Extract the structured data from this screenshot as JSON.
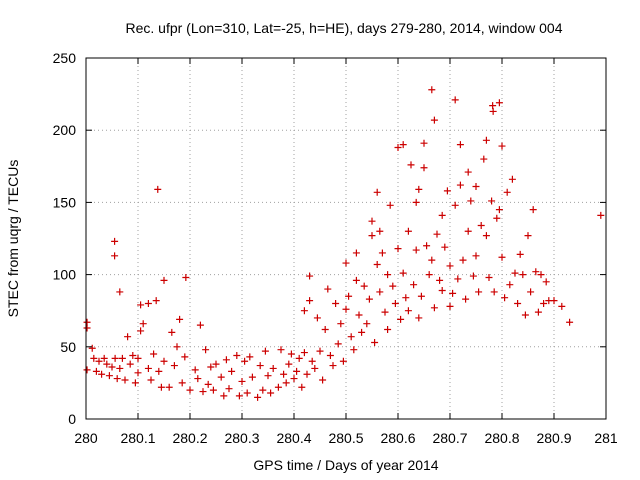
{
  "chart_data": {
    "type": "scatter",
    "title": "Rec. ufpr (Lon=310, Lat=-25, h=HE), days 279-280, 2014, window 004",
    "xlabel": "GPS time / Days of year 2014",
    "ylabel": "STEC from uqrg / TECUs",
    "xlim": [
      280,
      281
    ],
    "ylim": [
      0,
      250
    ],
    "xticks": [
      "280",
      "280.1",
      "280.2",
      "280.3",
      "280.4",
      "280.5",
      "280.6",
      "280.7",
      "280.8",
      "280.9",
      "281"
    ],
    "yticks": [
      "0",
      "50",
      "100",
      "150",
      "200",
      "250"
    ],
    "grid": true,
    "marker": "+",
    "color": "#cc0000",
    "series": [
      {
        "name": "STEC",
        "points": [
          [
            280.002,
            67
          ],
          [
            280.002,
            63
          ],
          [
            280.002,
            34
          ],
          [
            280.012,
            49
          ],
          [
            280.015,
            42
          ],
          [
            280.02,
            33
          ],
          [
            280.025,
            40
          ],
          [
            280.03,
            31
          ],
          [
            280.035,
            42
          ],
          [
            280.04,
            38
          ],
          [
            280.045,
            30
          ],
          [
            280.05,
            36
          ],
          [
            280.055,
            123
          ],
          [
            280.055,
            113
          ],
          [
            280.056,
            42
          ],
          [
            280.06,
            28
          ],
          [
            280.065,
            88
          ],
          [
            280.065,
            35
          ],
          [
            280.07,
            42
          ],
          [
            280.075,
            27
          ],
          [
            280.08,
            57
          ],
          [
            280.085,
            38
          ],
          [
            280.09,
            44
          ],
          [
            280.095,
            25
          ],
          [
            280.1,
            42
          ],
          [
            280.1,
            32
          ],
          [
            280.105,
            61
          ],
          [
            280.105,
            79
          ],
          [
            280.11,
            66
          ],
          [
            280.12,
            80
          ],
          [
            280.12,
            35
          ],
          [
            280.125,
            27
          ],
          [
            280.13,
            45
          ],
          [
            280.135,
            82
          ],
          [
            280.138,
            159
          ],
          [
            280.14,
            33
          ],
          [
            280.145,
            22
          ],
          [
            280.15,
            96
          ],
          [
            280.15,
            40
          ],
          [
            280.16,
            22
          ],
          [
            280.165,
            60
          ],
          [
            280.17,
            37
          ],
          [
            280.175,
            50
          ],
          [
            280.18,
            69
          ],
          [
            280.185,
            25
          ],
          [
            280.19,
            43
          ],
          [
            280.192,
            98
          ],
          [
            280.2,
            20
          ],
          [
            280.21,
            34
          ],
          [
            280.215,
            28
          ],
          [
            280.22,
            65
          ],
          [
            280.225,
            19
          ],
          [
            280.23,
            48
          ],
          [
            280.235,
            24
          ],
          [
            280.24,
            36
          ],
          [
            280.245,
            20
          ],
          [
            280.25,
            38
          ],
          [
            280.26,
            29
          ],
          [
            280.265,
            16
          ],
          [
            280.27,
            41
          ],
          [
            280.275,
            21
          ],
          [
            280.28,
            33
          ],
          [
            280.29,
            44
          ],
          [
            280.295,
            16
          ],
          [
            280.3,
            26
          ],
          [
            280.305,
            40
          ],
          [
            280.31,
            18
          ],
          [
            280.315,
            43
          ],
          [
            280.32,
            29
          ],
          [
            280.33,
            15
          ],
          [
            280.335,
            37
          ],
          [
            280.34,
            20
          ],
          [
            280.345,
            47
          ],
          [
            280.35,
            30
          ],
          [
            280.355,
            18
          ],
          [
            280.36,
            35
          ],
          [
            280.37,
            22
          ],
          [
            280.375,
            48
          ],
          [
            280.38,
            31
          ],
          [
            280.385,
            25
          ],
          [
            280.39,
            38
          ],
          [
            280.395,
            45
          ],
          [
            280.4,
            28
          ],
          [
            280.405,
            33
          ],
          [
            280.41,
            42
          ],
          [
            280.415,
            22
          ],
          [
            280.42,
            75
          ],
          [
            280.42,
            46
          ],
          [
            280.425,
            31
          ],
          [
            280.43,
            99
          ],
          [
            280.43,
            82
          ],
          [
            280.435,
            40
          ],
          [
            280.44,
            35
          ],
          [
            280.445,
            70
          ],
          [
            280.45,
            47
          ],
          [
            280.455,
            27
          ],
          [
            280.46,
            62
          ],
          [
            280.465,
            90
          ],
          [
            280.47,
            44
          ],
          [
            280.475,
            37
          ],
          [
            280.48,
            80
          ],
          [
            280.485,
            52
          ],
          [
            280.49,
            66
          ],
          [
            280.495,
            40
          ],
          [
            280.5,
            108
          ],
          [
            280.5,
            76
          ],
          [
            280.505,
            85
          ],
          [
            280.51,
            57
          ],
          [
            280.515,
            48
          ],
          [
            280.52,
            115
          ],
          [
            280.52,
            96
          ],
          [
            280.525,
            72
          ],
          [
            280.53,
            60
          ],
          [
            280.535,
            92
          ],
          [
            280.54,
            66
          ],
          [
            280.545,
            83
          ],
          [
            280.55,
            137
          ],
          [
            280.55,
            127
          ],
          [
            280.555,
            53
          ],
          [
            280.56,
            157
          ],
          [
            280.56,
            107
          ],
          [
            280.565,
            130
          ],
          [
            280.565,
            88
          ],
          [
            280.57,
            115
          ],
          [
            280.575,
            74
          ],
          [
            280.58,
            100
          ],
          [
            280.58,
            62
          ],
          [
            280.585,
            148
          ],
          [
            280.59,
            92
          ],
          [
            280.595,
            80
          ],
          [
            280.6,
            188
          ],
          [
            280.6,
            118
          ],
          [
            280.605,
            69
          ],
          [
            280.61,
            101
          ],
          [
            280.61,
            190
          ],
          [
            280.615,
            84
          ],
          [
            280.62,
            130
          ],
          [
            280.62,
            75
          ],
          [
            280.625,
            176
          ],
          [
            280.63,
            93
          ],
          [
            280.635,
            117
          ],
          [
            280.635,
            150
          ],
          [
            280.64,
            159
          ],
          [
            280.64,
            70
          ],
          [
            280.645,
            85
          ],
          [
            280.65,
            191
          ],
          [
            280.65,
            174
          ],
          [
            280.655,
            120
          ],
          [
            280.66,
            100
          ],
          [
            280.665,
            110
          ],
          [
            280.665,
            228
          ],
          [
            280.67,
            207
          ],
          [
            280.67,
            77
          ],
          [
            280.675,
            128
          ],
          [
            280.68,
            96
          ],
          [
            280.685,
            141
          ],
          [
            280.685,
            89
          ],
          [
            280.69,
            119
          ],
          [
            280.695,
            158
          ],
          [
            280.7,
            78
          ],
          [
            280.7,
            106
          ],
          [
            280.705,
            87
          ],
          [
            280.71,
            221
          ],
          [
            280.71,
            148
          ],
          [
            280.715,
            97
          ],
          [
            280.72,
            190
          ],
          [
            280.72,
            162
          ],
          [
            280.725,
            110
          ],
          [
            280.73,
            83
          ],
          [
            280.735,
            171
          ],
          [
            280.735,
            130
          ],
          [
            280.74,
            151
          ],
          [
            280.745,
            99
          ],
          [
            280.75,
            161
          ],
          [
            280.75,
            113
          ],
          [
            280.755,
            88
          ],
          [
            280.76,
            134
          ],
          [
            280.765,
            180
          ],
          [
            280.77,
            193
          ],
          [
            280.77,
            127
          ],
          [
            280.775,
            98
          ],
          [
            280.78,
            151
          ],
          [
            280.782,
            217
          ],
          [
            280.783,
            213
          ],
          [
            280.785,
            88
          ],
          [
            280.79,
            139
          ],
          [
            280.795,
            219
          ],
          [
            280.795,
            145
          ],
          [
            280.8,
            189
          ],
          [
            280.8,
            112
          ],
          [
            280.805,
            84
          ],
          [
            280.81,
            157
          ],
          [
            280.815,
            93
          ],
          [
            280.82,
            166
          ],
          [
            280.825,
            101
          ],
          [
            280.83,
            80
          ],
          [
            280.835,
            114
          ],
          [
            280.84,
            100
          ],
          [
            280.845,
            72
          ],
          [
            280.85,
            127
          ],
          [
            280.855,
            88
          ],
          [
            280.86,
            145
          ],
          [
            280.865,
            102
          ],
          [
            280.87,
            74
          ],
          [
            280.875,
            100
          ],
          [
            280.88,
            80
          ],
          [
            280.885,
            95
          ],
          [
            280.89,
            82
          ],
          [
            280.9,
            82
          ],
          [
            280.915,
            78
          ],
          [
            280.93,
            67
          ],
          [
            280.99,
            141
          ]
        ]
      }
    ]
  }
}
